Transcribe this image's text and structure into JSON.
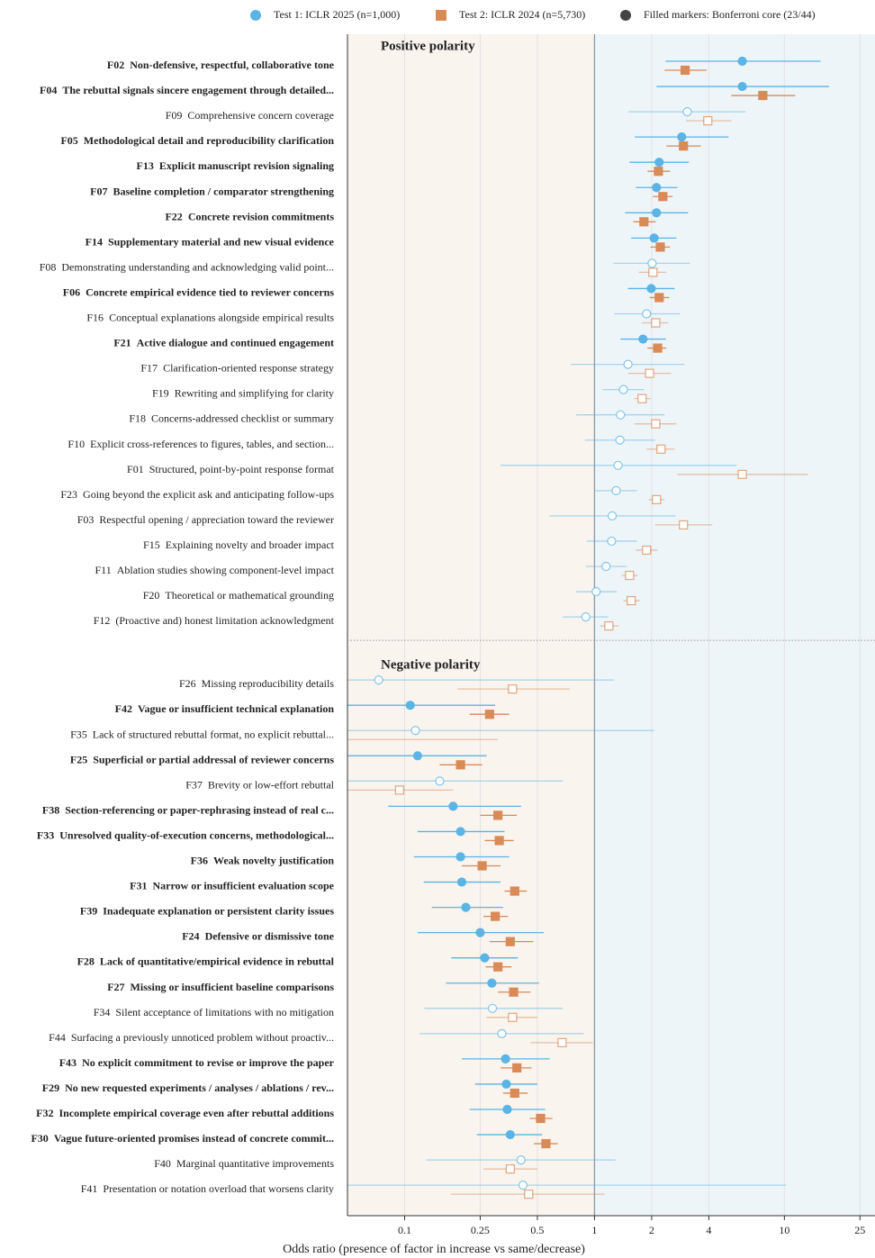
{
  "chart_data": {
    "type": "forest",
    "xlabel": "Odds ratio (presence of factor in increase vs same/decrease)",
    "xscale": "log",
    "xlim": [
      0.05,
      30
    ],
    "xticks": [
      0.1,
      0.25,
      0.5,
      1,
      2,
      4,
      10,
      25
    ],
    "reference": 1,
    "grid": true,
    "series": [
      {
        "name": "Test 1: ICLR 2025 (n=1,000)",
        "color": "#5ab4e5",
        "marker": "circle"
      },
      {
        "name": "Test 2: ICLR 2024 (n=5,730)",
        "color": "#d98a57",
        "marker": "square"
      }
    ],
    "filled_note": "Filled markers: Bonferroni core (23/44)",
    "groups": [
      {
        "title": "Positive polarity",
        "color": "#4a6fa5",
        "background": "#eef5f8",
        "rows": [
          {
            "id": "F02",
            "label": "Non-defensive, respectful, collaborative tone",
            "significant": true,
            "t1": {
              "or": 6.0,
              "lo": 2.37,
              "hi": 15.5
            },
            "t2": {
              "or": 3.0,
              "lo": 2.34,
              "hi": 3.9
            }
          },
          {
            "id": "F04",
            "label": "The rebuttal signals sincere engagement through detailed...",
            "significant": true,
            "t1": {
              "or": 6.0,
              "lo": 2.12,
              "hi": 17.2
            },
            "t2": {
              "or": 7.7,
              "lo": 5.25,
              "hi": 11.4
            }
          },
          {
            "id": "F09",
            "label": "Comprehensive concern coverage",
            "significant": false,
            "t1": {
              "or": 3.08,
              "lo": 1.51,
              "hi": 6.25
            },
            "t2": {
              "or": 3.95,
              "lo": 3.04,
              "hi": 5.25
            }
          },
          {
            "id": "F05",
            "label": "Methodological detail and reproducibility clarification",
            "significant": true,
            "t1": {
              "or": 2.88,
              "lo": 1.63,
              "hi": 5.08
            },
            "t2": {
              "or": 2.94,
              "lo": 2.39,
              "hi": 3.62
            }
          },
          {
            "id": "F13",
            "label": "Explicit manuscript revision signaling",
            "significant": true,
            "t1": {
              "or": 2.19,
              "lo": 1.53,
              "hi": 3.14
            },
            "t2": {
              "or": 2.17,
              "lo": 1.9,
              "hi": 2.5
            }
          },
          {
            "id": "F07",
            "label": "Baseline completion / comparator strengthening",
            "significant": true,
            "t1": {
              "or": 2.12,
              "lo": 1.65,
              "hi": 2.73
            },
            "t2": {
              "or": 2.29,
              "lo": 2.03,
              "hi": 2.58
            }
          },
          {
            "id": "F22",
            "label": "Concrete revision commitments",
            "significant": true,
            "t1": {
              "or": 2.12,
              "lo": 1.45,
              "hi": 3.11
            },
            "t2": {
              "or": 1.82,
              "lo": 1.6,
              "hi": 2.1
            }
          },
          {
            "id": "F14",
            "label": "Supplementary material and new visual evidence",
            "significant": true,
            "t1": {
              "or": 2.06,
              "lo": 1.56,
              "hi": 2.7
            },
            "t2": {
              "or": 2.22,
              "lo": 1.97,
              "hi": 2.5
            }
          },
          {
            "id": "F08",
            "label": "Demonstrating understanding and acknowledging valid point...",
            "significant": false,
            "t1": {
              "or": 2.01,
              "lo": 1.26,
              "hi": 3.18
            },
            "t2": {
              "or": 2.03,
              "lo": 1.71,
              "hi": 2.39
            }
          },
          {
            "id": "F06",
            "label": "Concrete empirical evidence tied to reviewer concerns",
            "significant": true,
            "t1": {
              "or": 1.99,
              "lo": 1.5,
              "hi": 2.64
            },
            "t2": {
              "or": 2.19,
              "lo": 1.95,
              "hi": 2.47
            }
          },
          {
            "id": "F16",
            "label": "Conceptual explanations alongside empirical results",
            "significant": false,
            "t1": {
              "or": 1.88,
              "lo": 1.27,
              "hi": 2.82
            },
            "t2": {
              "or": 2.1,
              "lo": 1.78,
              "hi": 2.45
            }
          },
          {
            "id": "F21",
            "label": "Active dialogue and continued engagement",
            "significant": true,
            "t1": {
              "or": 1.8,
              "lo": 1.37,
              "hi": 2.37
            },
            "t2": {
              "or": 2.15,
              "lo": 1.9,
              "hi": 2.39
            }
          },
          {
            "id": "F17",
            "label": "Clarification-oriented response strategy",
            "significant": false,
            "t1": {
              "or": 1.5,
              "lo": 0.75,
              "hi": 2.98
            },
            "t2": {
              "or": 1.95,
              "lo": 1.5,
              "hi": 2.53
            }
          },
          {
            "id": "F19",
            "label": "Rewriting and simplifying for clarity",
            "significant": false,
            "t1": {
              "or": 1.42,
              "lo": 1.1,
              "hi": 1.82
            },
            "t2": {
              "or": 1.78,
              "lo": 1.62,
              "hi": 1.97
            }
          },
          {
            "id": "F18",
            "label": "Concerns-addressed checklist or summary",
            "significant": false,
            "t1": {
              "or": 1.37,
              "lo": 0.8,
              "hi": 2.34
            },
            "t2": {
              "or": 2.1,
              "lo": 1.63,
              "hi": 2.7
            }
          },
          {
            "id": "F10",
            "label": "Explicit cross-references to figures, tables, and section...",
            "significant": false,
            "t1": {
              "or": 1.36,
              "lo": 0.89,
              "hi": 2.08
            },
            "t2": {
              "or": 2.24,
              "lo": 1.88,
              "hi": 2.64
            }
          },
          {
            "id": "F01",
            "label": "Structured, point-by-point response format",
            "significant": false,
            "t1": {
              "or": 1.33,
              "lo": 0.32,
              "hi": 5.6
            },
            "t2": {
              "or": 6.0,
              "lo": 2.73,
              "hi": 13.3
            }
          },
          {
            "id": "F23",
            "label": "Going beyond the explicit ask and anticipating follow-ups",
            "significant": false,
            "t1": {
              "or": 1.3,
              "lo": 1.01,
              "hi": 1.67
            },
            "t2": {
              "or": 2.12,
              "lo": 1.93,
              "hi": 2.34
            }
          },
          {
            "id": "F03",
            "label": "Respectful opening / appreciation toward the reviewer",
            "significant": false,
            "t1": {
              "or": 1.24,
              "lo": 0.58,
              "hi": 2.67
            },
            "t2": {
              "or": 2.94,
              "lo": 2.08,
              "hi": 4.17
            }
          },
          {
            "id": "F15",
            "label": "Explaining novelty and broader impact",
            "significant": false,
            "t1": {
              "or": 1.23,
              "lo": 0.91,
              "hi": 1.67
            },
            "t2": {
              "or": 1.88,
              "lo": 1.65,
              "hi": 2.15
            }
          },
          {
            "id": "F11",
            "label": "Ablation studies showing component-level impact",
            "significant": false,
            "t1": {
              "or": 1.15,
              "lo": 0.9,
              "hi": 1.48
            },
            "t2": {
              "or": 1.53,
              "lo": 1.39,
              "hi": 1.69
            }
          },
          {
            "id": "F20",
            "label": "Theoretical or mathematical grounding",
            "significant": false,
            "t1": {
              "or": 1.02,
              "lo": 0.8,
              "hi": 1.31
            },
            "t2": {
              "or": 1.56,
              "lo": 1.42,
              "hi": 1.73
            }
          },
          {
            "id": "F12",
            "label": "(Proactive and) honest limitation acknowledgment",
            "significant": false,
            "t1": {
              "or": 0.9,
              "lo": 0.68,
              "hi": 1.18
            },
            "t2": {
              "or": 1.19,
              "lo": 1.07,
              "hi": 1.34
            }
          }
        ]
      },
      {
        "title": "Negative polarity",
        "color": "#b5683a",
        "background": "#f9f4ee",
        "rows": [
          {
            "id": "F26",
            "label": "Missing reproducibility details",
            "significant": false,
            "t1": {
              "or": 0.073,
              "lo": 0.04,
              "hi": 1.27
            },
            "t2": {
              "or": 0.37,
              "lo": 0.19,
              "hi": 0.74
            }
          },
          {
            "id": "F42",
            "label": "Vague or insufficient technical explanation",
            "significant": true,
            "t1": {
              "or": 0.107,
              "lo": 0.04,
              "hi": 0.3
            },
            "t2": {
              "or": 0.28,
              "lo": 0.22,
              "hi": 0.355
            }
          },
          {
            "id": "F35",
            "label": "Lack of structured rebuttal format, no explicit rebuttal...",
            "significant": false,
            "t1": {
              "or": 0.114,
              "lo": 0.03,
              "hi": 2.06
            },
            "t2": {
              "or": 0.03,
              "lo": 0.005,
              "hi": 0.31
            }
          },
          {
            "id": "F25",
            "label": "Superficial or partial addressal of reviewer concerns",
            "significant": true,
            "t1": {
              "or": 0.117,
              "lo": 0.04,
              "hi": 0.27
            },
            "t2": {
              "or": 0.197,
              "lo": 0.153,
              "hi": 0.256
            }
          },
          {
            "id": "F37",
            "label": "Brevity or low-effort rebuttal",
            "significant": false,
            "t1": {
              "or": 0.153,
              "lo": 0.03,
              "hi": 0.68
            },
            "t2": {
              "or": 0.094,
              "lo": 0.04,
              "hi": 0.18
            }
          },
          {
            "id": "F38",
            "label": "Section-referencing or paper-rephrasing instead of real c...",
            "significant": true,
            "t1": {
              "or": 0.18,
              "lo": 0.082,
              "hi": 0.41
            },
            "t2": {
              "or": 0.31,
              "lo": 0.25,
              "hi": 0.39
            }
          },
          {
            "id": "F33",
            "label": "Unresolved quality-of-execution concerns, methodological...",
            "significant": true,
            "t1": {
              "or": 0.197,
              "lo": 0.117,
              "hi": 0.336
            },
            "t2": {
              "or": 0.315,
              "lo": 0.264,
              "hi": 0.375
            }
          },
          {
            "id": "F36",
            "label": "Weak novelty justification",
            "significant": true,
            "t1": {
              "or": 0.197,
              "lo": 0.112,
              "hi": 0.355
            },
            "t2": {
              "or": 0.256,
              "lo": 0.2,
              "hi": 0.32
            }
          },
          {
            "id": "F31",
            "label": "Narrow or insufficient evaluation scope",
            "significant": true,
            "t1": {
              "or": 0.2,
              "lo": 0.126,
              "hi": 0.32
            },
            "t2": {
              "or": 0.38,
              "lo": 0.336,
              "hi": 0.44
            }
          },
          {
            "id": "F39",
            "label": "Inadequate explanation or persistent clarity issues",
            "significant": true,
            "t1": {
              "or": 0.21,
              "lo": 0.139,
              "hi": 0.33
            },
            "t2": {
              "or": 0.3,
              "lo": 0.26,
              "hi": 0.35
            }
          },
          {
            "id": "F24",
            "label": "Defensive or dismissive tone",
            "significant": true,
            "t1": {
              "or": 0.25,
              "lo": 0.117,
              "hi": 0.54
            },
            "t2": {
              "or": 0.36,
              "lo": 0.28,
              "hi": 0.475
            }
          },
          {
            "id": "F28",
            "label": "Lack of quantitative/empirical evidence in rebuttal",
            "significant": true,
            "t1": {
              "or": 0.264,
              "lo": 0.176,
              "hi": 0.395
            },
            "t2": {
              "or": 0.31,
              "lo": 0.267,
              "hi": 0.366
            }
          },
          {
            "id": "F27",
            "label": "Missing or insufficient baseline comparisons",
            "significant": true,
            "t1": {
              "or": 0.288,
              "lo": 0.165,
              "hi": 0.51
            },
            "t2": {
              "or": 0.375,
              "lo": 0.31,
              "hi": 0.46
            }
          },
          {
            "id": "F34",
            "label": "Silent acceptance of limitations with no mitigation",
            "significant": false,
            "t1": {
              "or": 0.29,
              "lo": 0.127,
              "hi": 0.68
            },
            "t2": {
              "or": 0.37,
              "lo": 0.27,
              "hi": 0.5
            }
          },
          {
            "id": "F44",
            "label": "Surfacing a previously unnoticed problem without proactiv...",
            "significant": false,
            "t1": {
              "or": 0.325,
              "lo": 0.12,
              "hi": 0.877
            },
            "t2": {
              "or": 0.675,
              "lo": 0.46,
              "hi": 0.98
            }
          },
          {
            "id": "F43",
            "label": "No explicit commitment to revise or improve the paper",
            "significant": true,
            "t1": {
              "or": 0.34,
              "lo": 0.2,
              "hi": 0.58
            },
            "t2": {
              "or": 0.39,
              "lo": 0.32,
              "hi": 0.466
            }
          },
          {
            "id": "F29",
            "label": "No new requested experiments / analyses / ablations / rev...",
            "significant": true,
            "t1": {
              "or": 0.343,
              "lo": 0.235,
              "hi": 0.5
            },
            "t2": {
              "or": 0.38,
              "lo": 0.33,
              "hi": 0.445
            }
          },
          {
            "id": "F32",
            "label": "Incomplete empirical coverage even after rebuttal additions",
            "significant": true,
            "t1": {
              "or": 0.347,
              "lo": 0.22,
              "hi": 0.55
            },
            "t2": {
              "or": 0.52,
              "lo": 0.456,
              "hi": 0.6
            }
          },
          {
            "id": "F30",
            "label": "Vague future-oriented promises instead of concrete commit...",
            "significant": true,
            "t1": {
              "or": 0.36,
              "lo": 0.24,
              "hi": 0.53
            },
            "t2": {
              "or": 0.555,
              "lo": 0.48,
              "hi": 0.64
            }
          },
          {
            "id": "F40",
            "label": "Marginal quantitative improvements",
            "significant": false,
            "t1": {
              "or": 0.41,
              "lo": 0.13,
              "hi": 1.29
            },
            "t2": {
              "or": 0.36,
              "lo": 0.26,
              "hi": 0.5
            }
          },
          {
            "id": "F41",
            "label": "Presentation or notation overload that worsens clarity",
            "significant": false,
            "t1": {
              "or": 0.42,
              "lo": 0.04,
              "hi": 10.2
            },
            "t2": {
              "or": 0.45,
              "lo": 0.175,
              "hi": 1.13
            }
          }
        ]
      }
    ]
  }
}
